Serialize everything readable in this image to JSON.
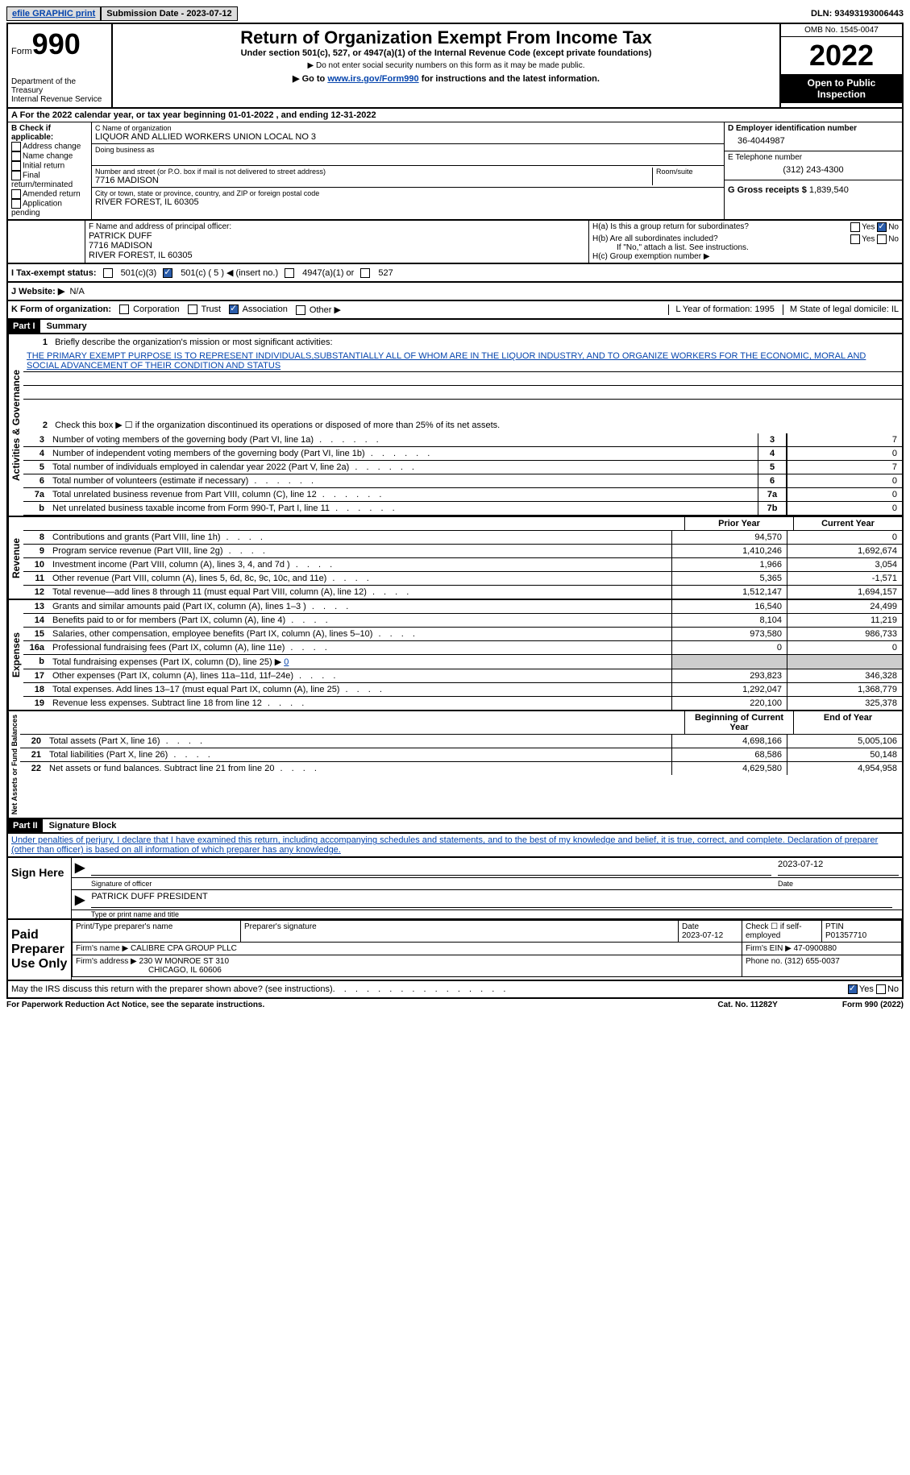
{
  "top": {
    "efile": "efile GRAPHIC print",
    "submission": "Submission Date - 2023-07-12",
    "dln": "DLN: 93493193006443"
  },
  "header": {
    "form_label": "Form",
    "form_num": "990",
    "dept": "Department of the Treasury",
    "irs": "Internal Revenue Service",
    "title": "Return of Organization Exempt From Income Tax",
    "sub1": "Under section 501(c), 527, or 4947(a)(1) of the Internal Revenue Code (except private foundations)",
    "sub2": "▶ Do not enter social security numbers on this form as it may be made public.",
    "sub3_pre": "▶ Go to ",
    "sub3_link": "www.irs.gov/Form990",
    "sub3_post": " for instructions and the latest information.",
    "omb": "OMB No. 1545-0047",
    "year": "2022",
    "open": "Open to Public Inspection"
  },
  "row_a": "A For the 2022 calendar year, or tax year beginning 01-01-2022    , and ending 12-31-2022",
  "section_b": {
    "label": "B Check if applicable:",
    "opts": [
      "Address change",
      "Name change",
      "Initial return",
      "Final return/terminated",
      "Amended return",
      "Application pending"
    ]
  },
  "section_c": {
    "name_label": "C Name of organization",
    "name": "LIQUOR AND ALLIED WORKERS UNION LOCAL NO 3",
    "dba_label": "Doing business as",
    "addr_label": "Number and street (or P.O. box if mail is not delivered to street address)",
    "room_label": "Room/suite",
    "addr": "7716 MADISON",
    "city_label": "City or town, state or province, country, and ZIP or foreign postal code",
    "city": "RIVER FOREST, IL  60305"
  },
  "section_d": {
    "label": "D Employer identification number",
    "val": "36-4044987"
  },
  "section_e": {
    "label": "E Telephone number",
    "val": "(312) 243-4300"
  },
  "section_g": {
    "label": "G Gross receipts $",
    "val": "1,839,540"
  },
  "section_f": {
    "label": "F Name and address of principal officer:",
    "name": "PATRICK DUFF",
    "addr1": "7716 MADISON",
    "addr2": "RIVER FOREST, IL  60305"
  },
  "section_h": {
    "a": "H(a)  Is this a group return for subordinates?",
    "b": "H(b)  Are all subordinates included?",
    "b_note": "If \"No,\" attach a list. See instructions.",
    "c": "H(c)  Group exemption number ▶"
  },
  "tax_status": {
    "label": "I  Tax-exempt status:",
    "opt1": "501(c)(3)",
    "opt2": "501(c) ( 5 ) ◀ (insert no.)",
    "opt3": "4947(a)(1) or",
    "opt4": "527"
  },
  "website": {
    "label": "J  Website: ▶",
    "val": "N/A"
  },
  "row_k": {
    "k": "K Form of organization:",
    "corp": "Corporation",
    "trust": "Trust",
    "assoc": "Association",
    "other": "Other ▶",
    "l": "L Year of formation: 1995",
    "m": "M State of legal domicile: IL"
  },
  "part1": {
    "header": "Part I",
    "title": "Summary",
    "line1_label": "Briefly describe the organization's mission or most significant activities:",
    "mission": "THE PRIMARY EXEMPT PURPOSE IS TO REPRESENT INDIVIDUALS,SUBSTANTIALLY ALL OF WHOM ARE IN THE LIQUOR INDUSTRY, AND TO ORGANIZE WORKERS FOR THE ECONOMIC, MORAL AND SOCIAL ADVANCEMENT OF THEIR CONDITION AND STATUS",
    "line2": "Check this box ▶ ☐  if the organization discontinued its operations or disposed of more than 25% of its net assets.",
    "vlabel_gov": "Activities & Governance",
    "vlabel_rev": "Revenue",
    "vlabel_exp": "Expenses",
    "vlabel_net": "Net Assets or Fund Balances",
    "col_prior": "Prior Year",
    "col_current": "Current Year",
    "col_begin": "Beginning of Current Year",
    "col_end": "End of Year",
    "lines_gov": [
      {
        "n": "3",
        "t": "Number of voting members of the governing body (Part VI, line 1a)",
        "box": "3",
        "v": "7"
      },
      {
        "n": "4",
        "t": "Number of independent voting members of the governing body (Part VI, line 1b)",
        "box": "4",
        "v": "0"
      },
      {
        "n": "5",
        "t": "Total number of individuals employed in calendar year 2022 (Part V, line 2a)",
        "box": "5",
        "v": "7"
      },
      {
        "n": "6",
        "t": "Total number of volunteers (estimate if necessary)",
        "box": "6",
        "v": "0"
      },
      {
        "n": "7a",
        "t": "Total unrelated business revenue from Part VIII, column (C), line 12",
        "box": "7a",
        "v": "0"
      },
      {
        "n": "b",
        "t": "Net unrelated business taxable income from Form 990-T, Part I, line 11",
        "box": "7b",
        "v": "0"
      }
    ],
    "lines_rev": [
      {
        "n": "8",
        "t": "Contributions and grants (Part VIII, line 1h)",
        "p": "94,570",
        "c": "0"
      },
      {
        "n": "9",
        "t": "Program service revenue (Part VIII, line 2g)",
        "p": "1,410,246",
        "c": "1,692,674"
      },
      {
        "n": "10",
        "t": "Investment income (Part VIII, column (A), lines 3, 4, and 7d )",
        "p": "1,966",
        "c": "3,054"
      },
      {
        "n": "11",
        "t": "Other revenue (Part VIII, column (A), lines 5, 6d, 8c, 9c, 10c, and 11e)",
        "p": "5,365",
        "c": "-1,571"
      },
      {
        "n": "12",
        "t": "Total revenue—add lines 8 through 11 (must equal Part VIII, column (A), line 12)",
        "p": "1,512,147",
        "c": "1,694,157"
      }
    ],
    "lines_exp": [
      {
        "n": "13",
        "t": "Grants and similar amounts paid (Part IX, column (A), lines 1–3 )",
        "p": "16,540",
        "c": "24,499"
      },
      {
        "n": "14",
        "t": "Benefits paid to or for members (Part IX, column (A), line 4)",
        "p": "8,104",
        "c": "11,219"
      },
      {
        "n": "15",
        "t": "Salaries, other compensation, employee benefits (Part IX, column (A), lines 5–10)",
        "p": "973,580",
        "c": "986,733"
      },
      {
        "n": "16a",
        "t": "Professional fundraising fees (Part IX, column (A), line 11e)",
        "p": "0",
        "c": "0"
      },
      {
        "n": "b",
        "t": "Total fundraising expenses (Part IX, column (D), line 25) ▶ 0",
        "p": "",
        "c": "",
        "shaded": true
      },
      {
        "n": "17",
        "t": "Other expenses (Part IX, column (A), lines 11a–11d, 11f–24e)",
        "p": "293,823",
        "c": "346,328"
      },
      {
        "n": "18",
        "t": "Total expenses. Add lines 13–17 (must equal Part IX, column (A), line 25)",
        "p": "1,292,047",
        "c": "1,368,779"
      },
      {
        "n": "19",
        "t": "Revenue less expenses. Subtract line 18 from line 12",
        "p": "220,100",
        "c": "325,378"
      }
    ],
    "lines_net": [
      {
        "n": "20",
        "t": "Total assets (Part X, line 16)",
        "p": "4,698,166",
        "c": "5,005,106"
      },
      {
        "n": "21",
        "t": "Total liabilities (Part X, line 26)",
        "p": "68,586",
        "c": "50,148"
      },
      {
        "n": "22",
        "t": "Net assets or fund balances. Subtract line 21 from line 20",
        "p": "4,629,580",
        "c": "4,954,958"
      }
    ]
  },
  "part2": {
    "header": "Part II",
    "title": "Signature Block",
    "declaration": "Under penalties of perjury, I declare that I have examined this return, including accompanying schedules and statements, and to the best of my knowledge and belief, it is true, correct, and complete. Declaration of preparer (other than officer) is based on all information of which preparer has any knowledge.",
    "sign_here": "Sign Here",
    "sig_officer": "Signature of officer",
    "sig_date": "2023-07-12",
    "date_label": "Date",
    "officer_name": "PATRICK DUFF PRESIDENT",
    "type_name": "Type or print name and title",
    "paid": "Paid Preparer Use Only",
    "prep_name_label": "Print/Type preparer's name",
    "prep_sig_label": "Preparer's signature",
    "prep_date_label": "Date",
    "prep_date": "2023-07-12",
    "check_self": "Check ☐ if self-employed",
    "ptin_label": "PTIN",
    "ptin": "P01357710",
    "firm_name_label": "Firm's name    ▶",
    "firm_name": "CALIBRE CPA GROUP PLLC",
    "firm_ein_label": "Firm's EIN ▶",
    "firm_ein": "47-0900880",
    "firm_addr_label": "Firm's address ▶",
    "firm_addr1": "230 W MONROE ST 310",
    "firm_addr2": "CHICAGO, IL  60606",
    "phone_label": "Phone no.",
    "phone": "(312) 655-0037",
    "discuss": "May the IRS discuss this return with the preparer shown above? (see instructions)"
  },
  "footer": {
    "left": "For Paperwork Reduction Act Notice, see the separate instructions.",
    "mid": "Cat. No. 11282Y",
    "right": "Form 990 (2022)"
  }
}
